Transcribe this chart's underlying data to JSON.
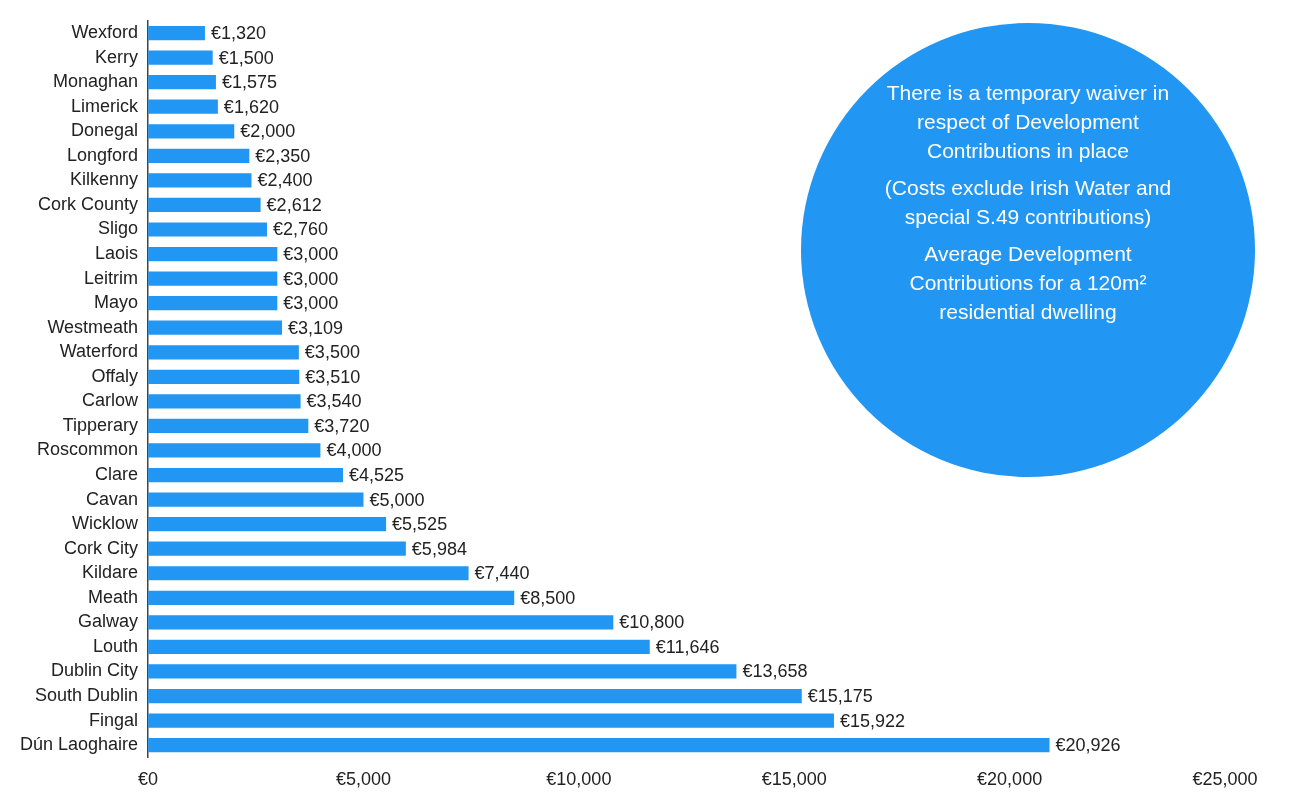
{
  "chart_data": {
    "type": "bar",
    "orientation": "horizontal",
    "color": "#2196f3",
    "categories": [
      "Wexford",
      "Kerry",
      "Monaghan",
      "Limerick",
      "Donegal",
      "Longford",
      "Kilkenny",
      "Cork County",
      "Sligo",
      "Laois",
      "Leitrim",
      "Mayo",
      "Westmeath",
      "Waterford",
      "Offaly",
      "Carlow",
      "Tipperary",
      "Roscommon",
      "Clare",
      "Cavan",
      "Wicklow",
      "Cork City",
      "Kildare",
      "Meath",
      "Galway",
      "Louth",
      "Dublin City",
      "South Dublin",
      "Fingal",
      "Dún Laoghaire"
    ],
    "values": [
      1320,
      1500,
      1575,
      1620,
      2000,
      2350,
      2400,
      2612,
      2760,
      3000,
      3000,
      3000,
      3109,
      3500,
      3510,
      3540,
      3720,
      4000,
      4525,
      5000,
      5525,
      5984,
      7440,
      8500,
      10800,
      11646,
      13658,
      15175,
      15922,
      20926
    ],
    "value_labels": [
      "€1,320",
      "€1,500",
      "€1,575",
      "€1,620",
      "€2,000",
      "€2,350",
      "€2,400",
      "€2,612",
      "€2,760",
      "€3,000",
      "€3,000",
      "€3,000",
      "€3,109",
      "€3,500",
      "€3,510",
      "€3,540",
      "€3,720",
      "€4,000",
      "€4,525",
      "€5,000",
      "€5,525",
      "€5,984",
      "€7,440",
      "€8,500",
      "€10,800",
      "€11,646",
      "€13,658",
      "€15,175",
      "€15,922",
      "€20,926"
    ],
    "xlim": [
      0,
      25000
    ],
    "xticks": [
      {
        "value": 0,
        "label": "€0"
      },
      {
        "value": 5000,
        "label": "€5,000"
      },
      {
        "value": 10000,
        "label": "€10,000"
      },
      {
        "value": 15000,
        "label": "€15,000"
      },
      {
        "value": 20000,
        "label": "€20,000"
      },
      {
        "value": 25000,
        "label": "€25,000"
      }
    ],
    "grid": false,
    "legend": false,
    "annotations": [
      "There is a temporary waiver in respect of Development Contributions in place",
      "(Costs exclude Irish Water and special S.49 contributions)",
      "Average Development Contributions for a 120m² residential dwelling"
    ]
  }
}
